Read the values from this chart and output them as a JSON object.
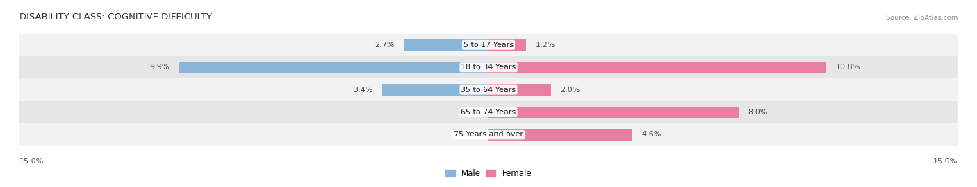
{
  "title": "DISABILITY CLASS: COGNITIVE DIFFICULTY",
  "source": "Source: ZipAtlas.com",
  "categories": [
    "75 Years and over",
    "65 to 74 Years",
    "35 to 64 Years",
    "18 to 34 Years",
    "5 to 17 Years"
  ],
  "male_values": [
    0.0,
    0.0,
    3.4,
    9.9,
    2.7
  ],
  "female_values": [
    4.6,
    8.0,
    2.0,
    10.8,
    1.2
  ],
  "male_color": "#8ab4d8",
  "female_color": "#e87fa0",
  "max_val": 15.0,
  "bar_height": 0.52,
  "label_fontsize": 8.0,
  "title_fontsize": 9.5,
  "axis_label_fontsize": 8.0,
  "legend_fontsize": 8.5,
  "row_bg_even": "#f2f2f2",
  "row_bg_odd": "#e6e6e6"
}
